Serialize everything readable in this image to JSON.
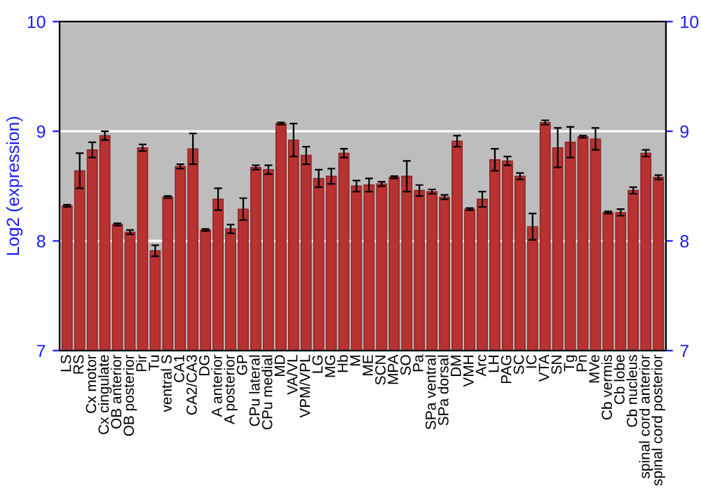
{
  "chart_data": {
    "type": "bar",
    "ylabel": "Log2 (expression)",
    "categories": [
      "LS",
      "RS",
      "Cx motor",
      "Cx cingulate",
      "OB anterior",
      "OB posterior",
      "Pir",
      "Tu",
      "ventral S",
      "CA1",
      "CA2/CA3",
      "DG",
      "A anterior",
      "A posterior",
      "GP",
      "CPu lateral",
      "CPu medial",
      "MD",
      "VA/VL",
      "VPM/VPL",
      "LG",
      "MG",
      "Hb",
      "M",
      "ME",
      "SCN",
      "MPA",
      "SO",
      "Pa",
      "SPa ventral",
      "SPa dorsal",
      "DM",
      "VMH",
      "Arc",
      "LH",
      "PAG",
      "SC",
      "IC",
      "VTA",
      "SN",
      "Tg",
      "Pn",
      "MVe",
      "Cb vermis",
      "Cb lobe",
      "Cb nucleus",
      "spinal cord anterior",
      "spinal cord posterior"
    ],
    "values": [
      8.32,
      8.64,
      8.83,
      8.96,
      8.15,
      8.08,
      8.85,
      7.91,
      8.4,
      8.68,
      8.84,
      8.1,
      8.38,
      8.11,
      8.29,
      8.67,
      8.65,
      9.07,
      8.92,
      8.78,
      8.57,
      8.59,
      8.8,
      8.5,
      8.51,
      8.52,
      8.58,
      8.59,
      8.46,
      8.45,
      8.4,
      8.91,
      8.29,
      8.38,
      8.74,
      8.73,
      8.59,
      8.13,
      9.08,
      8.85,
      8.9,
      8.95,
      8.93,
      8.26,
      8.26,
      8.46,
      8.8,
      8.58
    ],
    "errors": [
      0.01,
      0.16,
      0.07,
      0.04,
      0.01,
      0.02,
      0.03,
      0.05,
      0.01,
      0.02,
      0.14,
      0.01,
      0.1,
      0.04,
      0.1,
      0.02,
      0.04,
      0.01,
      0.15,
      0.08,
      0.08,
      0.07,
      0.04,
      0.05,
      0.06,
      0.02,
      0.01,
      0.14,
      0.05,
      0.02,
      0.02,
      0.05,
      0.01,
      0.07,
      0.1,
      0.04,
      0.03,
      0.12,
      0.02,
      0.18,
      0.14,
      0.01,
      0.1,
      0.01,
      0.03,
      0.03,
      0.03,
      0.02
    ],
    "color": "#b83232",
    "ylim": [
      7,
      10
    ],
    "yticks": [
      7,
      8,
      9,
      10
    ],
    "y2lim": [
      7,
      10
    ],
    "y2ticks": [
      7,
      8,
      9,
      10
    ],
    "grid": "y",
    "legend": false
  }
}
